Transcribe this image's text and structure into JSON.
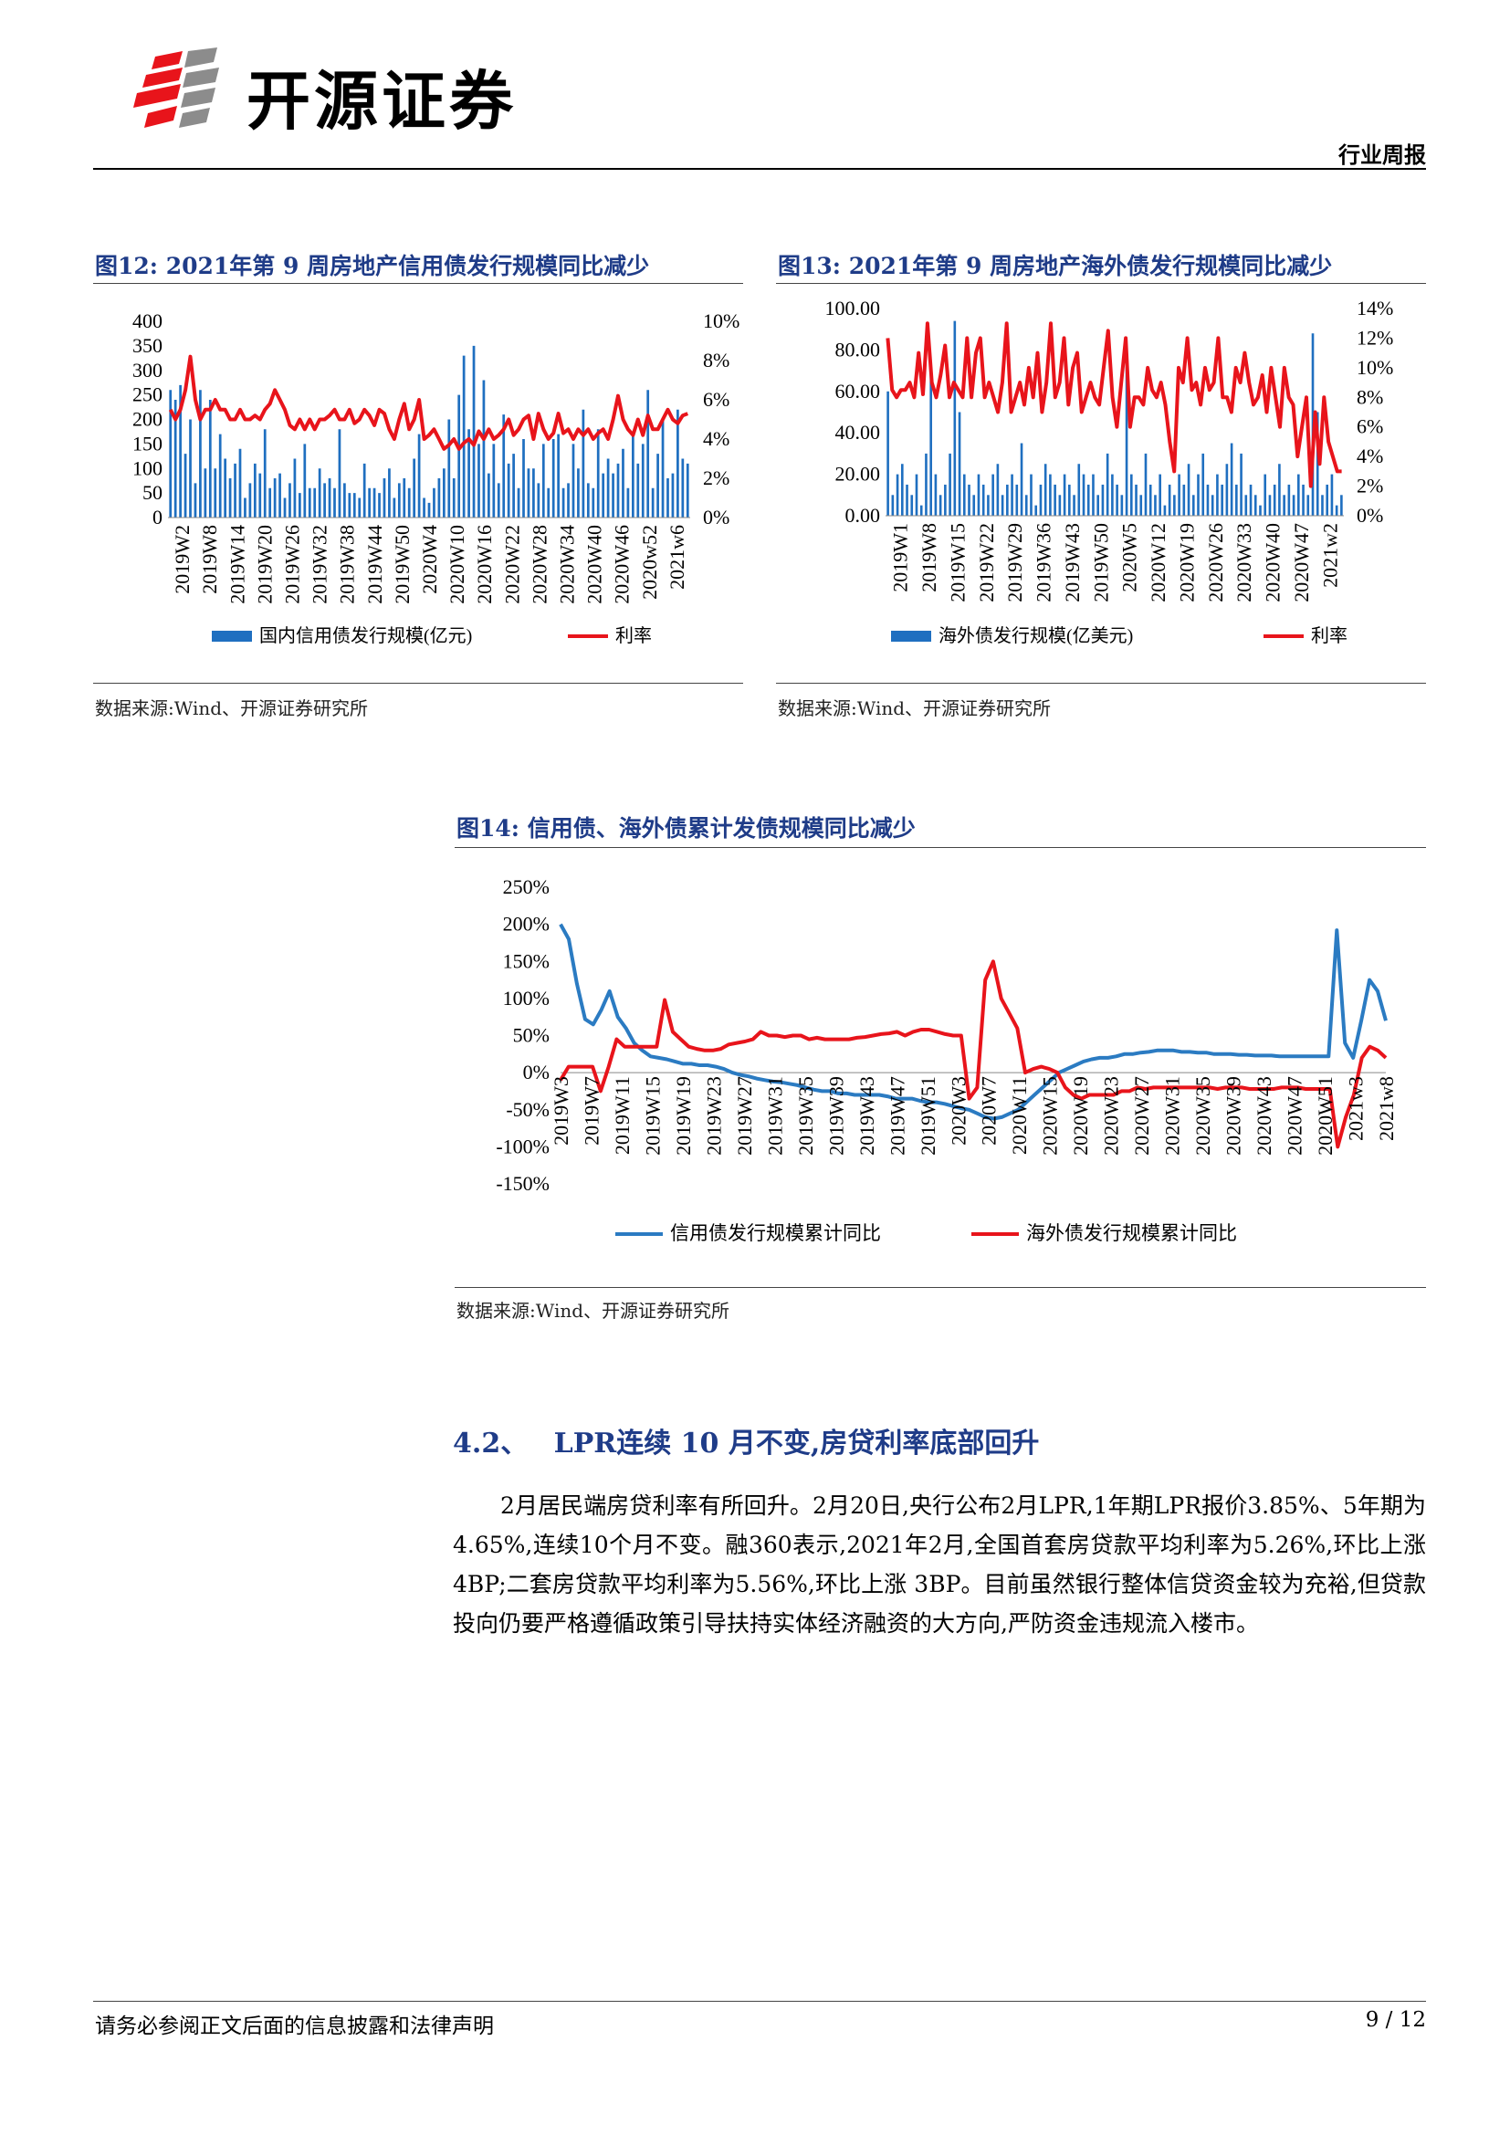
{
  "header": {
    "brand": "开源证券",
    "report_type": "行业周报"
  },
  "figures": [
    {
      "title": "图12:  2021年第 9 周房地产信用债发行规模同比减少",
      "source": "数据来源:Wind、开源证券研究所",
      "legend": [
        "国内信用债发行规模(亿元)",
        "利率"
      ]
    },
    {
      "title": "图13:  2021年第 9 周房地产海外债发行规模同比减少",
      "source": "数据来源:Wind、开源证券研究所",
      "legend": [
        "海外债发行规模(亿美元)",
        "利率"
      ]
    },
    {
      "title": "图14:  信用债、海外债累计发债规模同比减少",
      "source": "数据来源:Wind、开源证券研究所",
      "legend": [
        "信用债发行规模累计同比",
        "海外债发行规模累计同比"
      ]
    }
  ],
  "section": {
    "number": "4.2、",
    "title": "LPR连续 10 月不变,房贷利率底部回升",
    "paragraph": "2月居民端房贷利率有所回升。2月20日,央行公布2月LPR,1年期LPR报价3.85%、5年期为4.65%,连续10个月不变。融360表示,2021年2月,全国首套房贷款平均利率为5.26%,环比上涨4BP;二套房贷款平均利率为5.56%,环比上涨 3BP。目前虽然银行整体信贷资金较为充裕,但贷款投向仍要严格遵循政策引导扶持实体经济融资的大方向,严防资金违规流入楼市。"
  },
  "footer": {
    "disclaimer": "请务必参阅正文后面的信息披露和法律声明",
    "page": "9 / 12"
  },
  "colors": {
    "blue": "#1f6fc0",
    "red": "#e8141b",
    "title_blue": "#1f3c88",
    "line_blue": "#2b7bc2"
  },
  "chart_data": [
    {
      "type": "bar",
      "combo": "bar+line",
      "x_ticks": [
        "2019W2",
        "2019W8",
        "2019W14",
        "2019W20",
        "2019W26",
        "2019W32",
        "2019W38",
        "2019W44",
        "2019W50",
        "2020W4",
        "2020W10",
        "2020W16",
        "2020W22",
        "2020W28",
        "2020W34",
        "2020W40",
        "2020W46",
        "2020w52",
        "2021w6"
      ],
      "y_ticks": [
        "0",
        "50",
        "100",
        "150",
        "200",
        "250",
        "300",
        "350",
        "400"
      ],
      "y2_ticks": [
        "0%",
        "2%",
        "4%",
        "6%",
        "8%",
        "10%"
      ],
      "ylim": [
        0,
        400
      ],
      "y2lim": [
        0,
        0.1
      ],
      "series": [
        {
          "name": "国内信用债发行规模(亿元)",
          "kind": "bar",
          "values": [
            260,
            240,
            270,
            130,
            200,
            70,
            260,
            100,
            240,
            100,
            170,
            120,
            80,
            110,
            140,
            40,
            70,
            110,
            90,
            180,
            60,
            80,
            90,
            40,
            70,
            120,
            50,
            150,
            60,
            60,
            100,
            70,
            80,
            60,
            180,
            70,
            50,
            50,
            40,
            110,
            60,
            60,
            50,
            80,
            100,
            40,
            70,
            80,
            60,
            120,
            170,
            40,
            30,
            60,
            80,
            100,
            200,
            80,
            250,
            330,
            180,
            350,
            150,
            280,
            90,
            150,
            70,
            210,
            110,
            130,
            60,
            160,
            100,
            100,
            70,
            150,
            60,
            160,
            170,
            60,
            70,
            150,
            100,
            220,
            70,
            60,
            180,
            90,
            120,
            90,
            110,
            140,
            60,
            170,
            110,
            150,
            260,
            60,
            130,
            200,
            80,
            90,
            220,
            120,
            110
          ]
        },
        {
          "name": "利率",
          "kind": "line",
          "axis": "right",
          "values": [
            0.055,
            0.05,
            0.055,
            0.065,
            0.082,
            0.06,
            0.05,
            0.055,
            0.055,
            0.06,
            0.055,
            0.055,
            0.05,
            0.05,
            0.055,
            0.05,
            0.05,
            0.052,
            0.05,
            0.055,
            0.058,
            0.065,
            0.06,
            0.055,
            0.047,
            0.045,
            0.05,
            0.045,
            0.05,
            0.045,
            0.05,
            0.05,
            0.052,
            0.055,
            0.05,
            0.05,
            0.055,
            0.048,
            0.05,
            0.055,
            0.052,
            0.047,
            0.055,
            0.053,
            0.045,
            0.04,
            0.05,
            0.058,
            0.045,
            0.05,
            0.06,
            0.04,
            0.042,
            0.045,
            0.04,
            0.035,
            0.037,
            0.04,
            0.035,
            0.038,
            0.04,
            0.037,
            0.044,
            0.04,
            0.045,
            0.04,
            0.042,
            0.045,
            0.05,
            0.042,
            0.045,
            0.05,
            0.052,
            0.04,
            0.053,
            0.045,
            0.04,
            0.043,
            0.053,
            0.043,
            0.045,
            0.04,
            0.045,
            0.042,
            0.045,
            0.04,
            0.043,
            0.045,
            0.04,
            0.05,
            0.062,
            0.05,
            0.045,
            0.042,
            0.05,
            0.042,
            0.052,
            0.045,
            0.045,
            0.05,
            0.055,
            0.05,
            0.048,
            0.052,
            0.053
          ]
        }
      ]
    },
    {
      "type": "bar",
      "combo": "bar+line",
      "x_ticks": [
        "2019W1",
        "2019W8",
        "2019W15",
        "2019W22",
        "2019W29",
        "2019W36",
        "2019W43",
        "2019W50",
        "2020W5",
        "2020W12",
        "2020W19",
        "2020W26",
        "2020W33",
        "2020W40",
        "2020W47",
        "2021w2"
      ],
      "y_ticks": [
        "0.00",
        "20.00",
        "40.00",
        "60.00",
        "80.00",
        "100.00"
      ],
      "y2_ticks": [
        "0%",
        "2%",
        "4%",
        "6%",
        "8%",
        "10%",
        "12%",
        "14%"
      ],
      "ylim": [
        0,
        100
      ],
      "y2lim": [
        0,
        0.14
      ],
      "series": [
        {
          "name": "海外债发行规模(亿美元)",
          "kind": "bar",
          "values": [
            60,
            10,
            20,
            25,
            15,
            10,
            20,
            5,
            30,
            74,
            20,
            10,
            15,
            30,
            94,
            50,
            20,
            15,
            10,
            20,
            15,
            10,
            20,
            25,
            10,
            15,
            20,
            15,
            35,
            10,
            20,
            5,
            15,
            25,
            20,
            15,
            10,
            20,
            15,
            10,
            25,
            20,
            15,
            20,
            10,
            15,
            30,
            20,
            15,
            10,
            75,
            20,
            15,
            10,
            30,
            15,
            10,
            20,
            5,
            15,
            10,
            20,
            15,
            25,
            10,
            20,
            30,
            15,
            10,
            20,
            15,
            25,
            35,
            15,
            30,
            10,
            15,
            10,
            5,
            20,
            10,
            15,
            25,
            10,
            15,
            10,
            20,
            15,
            10,
            88,
            50,
            10,
            15,
            20,
            5,
            10
          ]
        },
        {
          "name": "利率",
          "kind": "line",
          "axis": "right",
          "values": [
            0.12,
            0.085,
            0.08,
            0.085,
            0.085,
            0.09,
            0.08,
            0.11,
            0.082,
            0.13,
            0.09,
            0.08,
            0.095,
            0.115,
            0.08,
            0.09,
            0.085,
            0.08,
            0.12,
            0.08,
            0.11,
            0.12,
            0.08,
            0.09,
            0.08,
            0.07,
            0.09,
            0.13,
            0.07,
            0.08,
            0.09,
            0.075,
            0.1,
            0.08,
            0.11,
            0.07,
            0.09,
            0.13,
            0.08,
            0.09,
            0.12,
            0.075,
            0.1,
            0.11,
            0.07,
            0.08,
            0.09,
            0.08,
            0.075,
            0.1,
            0.125,
            0.08,
            0.06,
            0.09,
            0.12,
            0.06,
            0.08,
            0.08,
            0.075,
            0.1,
            0.085,
            0.08,
            0.09,
            0.075,
            0.05,
            0.03,
            0.1,
            0.09,
            0.12,
            0.085,
            0.09,
            0.075,
            0.1,
            0.085,
            0.09,
            0.12,
            0.08,
            0.08,
            0.07,
            0.1,
            0.09,
            0.11,
            0.09,
            0.075,
            0.08,
            0.095,
            0.07,
            0.1,
            0.08,
            0.06,
            0.1,
            0.08,
            0.075,
            0.04,
            0.06,
            0.08,
            0.02,
            0.07,
            0.035,
            0.08,
            0.05,
            0.04,
            0.03,
            0.03
          ]
        }
      ]
    },
    {
      "type": "line",
      "x_ticks": [
        "2019W3",
        "2019W7",
        "2019W11",
        "2019W15",
        "2019W19",
        "2019W23",
        "2019W27",
        "2019W31",
        "2019W35",
        "2019W39",
        "2019W43",
        "2019W47",
        "2019W51",
        "2020W3",
        "2020W7",
        "2020W11",
        "2020W15",
        "2020W19",
        "2020W23",
        "2020W27",
        "2020W31",
        "2020W35",
        "2020W39",
        "2020W43",
        "2020W47",
        "2020W51",
        "2021w3",
        "2021w8"
      ],
      "y_ticks": [
        "-150%",
        "-100%",
        "-50%",
        "0%",
        "50%",
        "100%",
        "150%",
        "200%",
        "250%"
      ],
      "ylim": [
        -1.5,
        2.5
      ],
      "series": [
        {
          "name": "信用债发行规模累计同比",
          "values": [
            2.0,
            1.8,
            1.2,
            0.72,
            0.65,
            0.85,
            1.1,
            0.75,
            0.6,
            0.4,
            0.3,
            0.22,
            0.2,
            0.18,
            0.15,
            0.12,
            0.12,
            0.1,
            0.1,
            0.08,
            0.05,
            0.0,
            -0.03,
            -0.05,
            -0.08,
            -0.1,
            -0.12,
            -0.13,
            -0.15,
            -0.17,
            -0.2,
            -0.23,
            -0.25,
            -0.25,
            -0.28,
            -0.28,
            -0.3,
            -0.3,
            -0.3,
            -0.3,
            -0.32,
            -0.35,
            -0.35,
            -0.35,
            -0.38,
            -0.4,
            -0.4,
            -0.42,
            -0.45,
            -0.48,
            -0.5,
            -0.55,
            -0.6,
            -0.62,
            -0.6,
            -0.55,
            -0.5,
            -0.4,
            -0.3,
            -0.2,
            -0.1,
            0.0,
            0.05,
            0.1,
            0.15,
            0.18,
            0.2,
            0.2,
            0.22,
            0.25,
            0.25,
            0.27,
            0.28,
            0.3,
            0.3,
            0.3,
            0.28,
            0.28,
            0.27,
            0.27,
            0.25,
            0.25,
            0.25,
            0.24,
            0.24,
            0.23,
            0.23,
            0.23,
            0.22,
            0.22,
            0.22,
            0.22,
            0.22,
            0.22,
            0.22,
            1.92,
            0.4,
            0.2,
            0.7,
            1.25,
            1.1,
            0.7
          ]
        },
        {
          "name": "海外债发行规模累计同比",
          "values": [
            -0.1,
            0.08,
            0.08,
            0.08,
            0.08,
            -0.25,
            0.08,
            0.45,
            0.35,
            0.35,
            0.35,
            0.35,
            0.35,
            0.98,
            0.55,
            0.45,
            0.35,
            0.32,
            0.3,
            0.3,
            0.32,
            0.38,
            0.4,
            0.42,
            0.45,
            0.55,
            0.5,
            0.5,
            0.48,
            0.5,
            0.5,
            0.45,
            0.47,
            0.45,
            0.45,
            0.45,
            0.45,
            0.47,
            0.48,
            0.5,
            0.52,
            0.53,
            0.55,
            0.5,
            0.55,
            0.58,
            0.58,
            0.55,
            0.52,
            0.5,
            0.5,
            -0.35,
            -0.2,
            1.25,
            1.5,
            1.0,
            0.8,
            0.6,
            0.0,
            0.05,
            0.08,
            0.05,
            0.0,
            -0.2,
            -0.3,
            -0.35,
            -0.3,
            -0.3,
            -0.3,
            -0.3,
            -0.25,
            -0.25,
            -0.2,
            -0.22,
            -0.2,
            -0.2,
            -0.2,
            -0.2,
            -0.2,
            -0.2,
            -0.2,
            -0.2,
            -0.22,
            -0.2,
            -0.2,
            -0.2,
            -0.22,
            -0.22,
            -0.22,
            -0.22,
            -0.2,
            -0.2,
            -0.2,
            -0.22,
            -0.22,
            -0.22,
            -0.22,
            -1.0,
            -0.6,
            -0.3,
            0.2,
            0.35,
            0.3,
            0.2
          ]
        }
      ]
    }
  ]
}
